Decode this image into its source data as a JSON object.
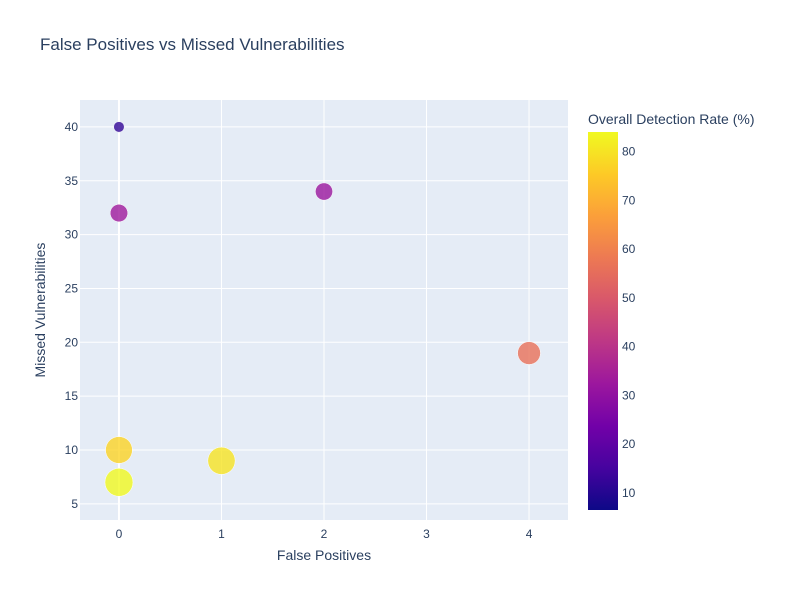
{
  "chart_data": {
    "type": "scatter",
    "title": "False Positives vs Missed Vulnerabilities",
    "xlabel": "False Positives",
    "ylabel": "Missed Vulnerabilities",
    "xlim": [
      -0.38,
      4.38
    ],
    "ylim": [
      3.5,
      42.5
    ],
    "x_ticks": [
      0,
      1,
      2,
      3,
      4
    ],
    "y_ticks": [
      5,
      10,
      15,
      20,
      25,
      30,
      35,
      40
    ],
    "grid": true,
    "plot_background": "#e5ecf6",
    "marker_size_encodes": "Overall Detection Rate (%)",
    "colorbar": {
      "title": "Overall Detection Rate (%)",
      "range": [
        6.5,
        84
      ],
      "ticks": [
        10,
        20,
        30,
        40,
        50,
        60,
        70,
        80
      ],
      "colorscale": [
        "#0d0887",
        "#46039f",
        "#7201a8",
        "#9c179e",
        "#bd3786",
        "#d8576b",
        "#ed7953",
        "#fb9f3a",
        "#fdca26",
        "#f0f921"
      ]
    },
    "points": [
      {
        "x": 0,
        "y": 40,
        "rate": 12
      },
      {
        "x": 0,
        "y": 32,
        "rate": 33
      },
      {
        "x": 2,
        "y": 34,
        "rate": 32
      },
      {
        "x": 4,
        "y": 19,
        "rate": 56
      },
      {
        "x": 0,
        "y": 10,
        "rate": 77
      },
      {
        "x": 1,
        "y": 9,
        "rate": 80
      },
      {
        "x": 0,
        "y": 7,
        "rate": 84
      }
    ]
  }
}
